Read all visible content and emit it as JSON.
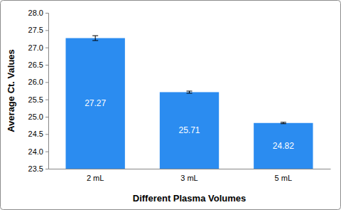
{
  "chart_data": {
    "type": "bar",
    "x_label": "Different Plasma Volumes",
    "y_label": "Average Ct. Values",
    "categories": [
      "2 mL",
      "3 mL",
      "5 mL"
    ],
    "values": [
      27.27,
      25.71,
      24.82
    ],
    "errors": [
      0.07,
      0.03,
      0.02
    ],
    "color": "#2b8cf0",
    "data_labels": true,
    "grid": false,
    "ylim": [
      23.5,
      28
    ],
    "yticks": [
      23.5,
      {
        "value": 24,
        "label": "24.0"
      },
      24.5,
      {
        "value": 25,
        "label": "25.0"
      },
      25.5,
      {
        "value": 26,
        "label": "26.0"
      },
      26.5,
      {
        "value": 27,
        "label": "27.0"
      },
      27.5,
      {
        "value": 28,
        "label": "28.0"
      }
    ]
  }
}
